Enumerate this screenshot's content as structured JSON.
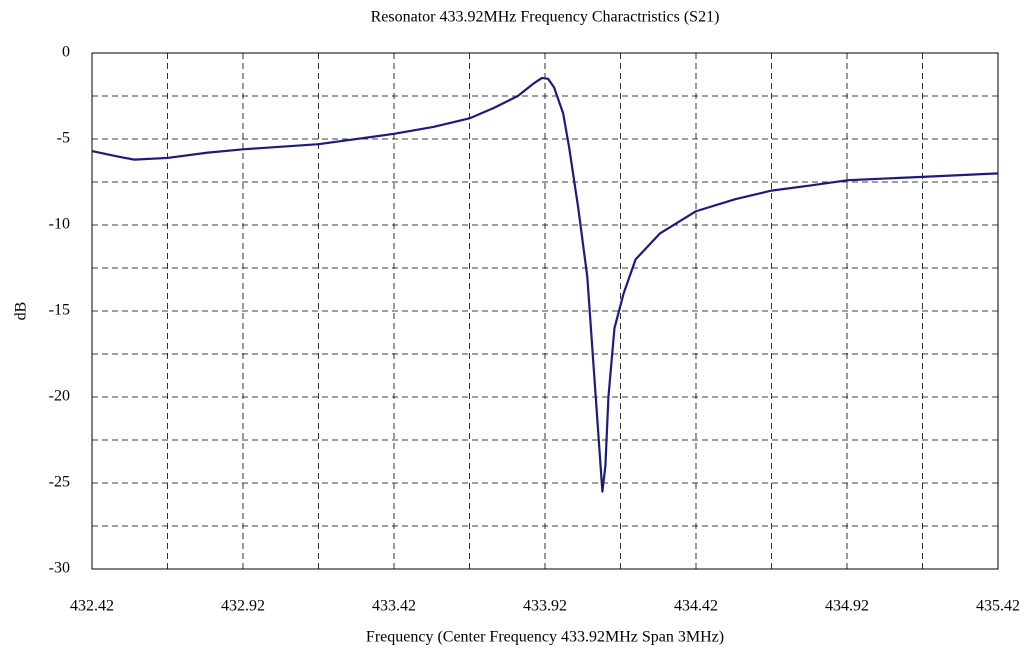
{
  "chart_data": {
    "type": "line",
    "title": "Resonator 433.92MHz Frequency Charactristics (S21)",
    "xlabel": "Frequency (Center Frequency 433.92MHz Span 3MHz)",
    "ylabel": "dB",
    "xlim": [
      432.42,
      435.42
    ],
    "ylim": [
      -30,
      0
    ],
    "xticks": [
      432.42,
      432.92,
      433.42,
      433.92,
      434.42,
      434.92,
      435.42
    ],
    "yticks": [
      0,
      -5,
      -10,
      -15,
      -20,
      -25,
      -30
    ],
    "x_minor_ticks": [
      432.67,
      433.17,
      433.67,
      434.17,
      434.67,
      435.17
    ],
    "y_minor_ticks": [
      -2.5,
      -7.5,
      -12.5,
      -17.5,
      -22.5,
      -27.5
    ],
    "grid": true,
    "series": [
      {
        "name": "S21",
        "color": "#1c1c7c",
        "x": [
          432.42,
          432.5,
          432.56,
          432.67,
          432.8,
          432.92,
          433.17,
          433.42,
          433.55,
          433.67,
          433.75,
          433.83,
          433.88,
          433.91,
          433.93,
          433.95,
          433.98,
          434.0,
          434.03,
          434.06,
          434.08,
          434.1,
          434.11,
          434.12,
          434.13,
          434.15,
          434.18,
          434.22,
          434.3,
          434.42,
          434.55,
          434.67,
          434.8,
          434.92,
          435.17,
          435.42
        ],
        "values": [
          -5.7,
          -6.0,
          -6.2,
          -6.1,
          -5.8,
          -5.6,
          -5.3,
          -4.7,
          -4.3,
          -3.8,
          -3.2,
          -2.5,
          -1.8,
          -1.45,
          -1.5,
          -2.0,
          -3.5,
          -5.5,
          -9,
          -13,
          -18,
          -23,
          -25.5,
          -24,
          -20,
          -16,
          -14,
          -12,
          -10.5,
          -9.2,
          -8.5,
          -8.0,
          -7.7,
          -7.4,
          -7.2,
          -7.0
        ]
      }
    ]
  }
}
